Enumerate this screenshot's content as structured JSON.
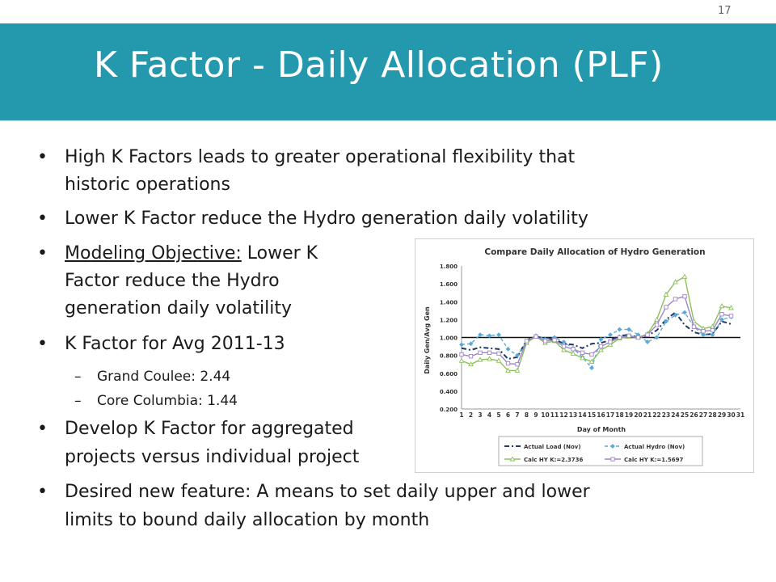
{
  "slide_number": "17",
  "title": "K Factor - Daily Allocation (PLF)",
  "bullets": [
    {
      "line1": "High K Factors leads to greater operational flexibility that",
      "line2": "historic operations"
    },
    {
      "line1": "Lower K Factor reduce the Hydro generation daily volatility"
    },
    {
      "prefix": "Modeling Objective:",
      "line1": " Lower K",
      "line2": "Factor reduce the Hydro",
      "line3": "generation daily volatility"
    },
    {
      "line1": "K Factor for Avg 2011-13"
    },
    {
      "line1": "Develop K Factor for aggregated",
      "line2": "projects versus individual project"
    },
    {
      "line1": "Desired new feature: A means to set daily upper and lower",
      "line2": "limits to bound daily allocation by month"
    }
  ],
  "sub_bullets": [
    "Grand Coulee: 2.44",
    "Core Columbia: 1.44"
  ],
  "chart_data": {
    "type": "line",
    "title": "Compare Daily Allocation of Hydro Generation",
    "xlabel": "Day of Month",
    "ylabel": "Daily Gen/Avg Gen",
    "x": [
      1,
      2,
      3,
      4,
      5,
      6,
      7,
      8,
      9,
      10,
      11,
      12,
      13,
      14,
      15,
      16,
      17,
      18,
      19,
      20,
      21,
      22,
      23,
      24,
      25,
      26,
      27,
      28,
      29,
      30,
      31
    ],
    "xlim": [
      1,
      31
    ],
    "ylim": [
      0.2,
      1.8
    ],
    "yticks": [
      "0.200",
      "0.400",
      "0.600",
      "0.800",
      "1.000",
      "1.200",
      "1.400",
      "1.600",
      "1.800"
    ],
    "reference_line": 1.0,
    "legend_position": "bottom",
    "series": [
      {
        "name": "Actual Load (Nov)",
        "color": "#1f3864",
        "dash": "6,3,2,3",
        "marker": "none",
        "values": [
          0.88,
          0.86,
          0.89,
          0.88,
          0.87,
          0.76,
          0.78,
          0.97,
          1.01,
          0.99,
          0.98,
          0.93,
          0.92,
          0.88,
          0.93,
          0.94,
          0.97,
          1.02,
          1.03,
          1.0,
          1.02,
          1.08,
          1.2,
          1.28,
          1.14,
          1.06,
          1.03,
          1.04,
          1.18,
          1.15,
          null
        ]
      },
      {
        "name": "Actual Hydro (Nov)",
        "color": "#5aa9d9",
        "dash": "4,3",
        "marker": "diamond",
        "values": [
          0.92,
          0.93,
          1.03,
          1.02,
          1.03,
          0.87,
          0.8,
          0.95,
          1.02,
          0.98,
          1.0,
          0.95,
          0.88,
          0.78,
          0.66,
          0.98,
          1.03,
          1.09,
          1.09,
          1.03,
          0.95,
          1.0,
          1.18,
          1.25,
          1.28,
          1.12,
          1.03,
          1.03,
          1.2,
          1.23,
          null
        ]
      },
      {
        "name": "Calc HY K:=2.3736",
        "color": "#8cc05a",
        "dash": "",
        "marker": "triangle",
        "values": [
          0.74,
          0.7,
          0.75,
          0.76,
          0.74,
          0.63,
          0.63,
          0.94,
          1.01,
          0.94,
          0.96,
          0.86,
          0.82,
          0.77,
          0.73,
          0.86,
          0.92,
          0.99,
          1.01,
          1.0,
          1.04,
          1.2,
          1.48,
          1.62,
          1.68,
          1.18,
          1.1,
          1.12,
          1.35,
          1.33,
          null
        ]
      },
      {
        "name": "Calc HY K:=1.5697",
        "color": "#9d86c4",
        "dash": "",
        "marker": "square",
        "values": [
          0.81,
          0.79,
          0.83,
          0.83,
          0.82,
          0.71,
          0.7,
          0.96,
          1.01,
          0.96,
          0.97,
          0.9,
          0.87,
          0.83,
          0.81,
          0.9,
          0.95,
          1.0,
          1.02,
          1.0,
          1.03,
          1.14,
          1.34,
          1.43,
          1.46,
          1.12,
          1.07,
          1.08,
          1.26,
          1.24,
          null
        ]
      }
    ]
  }
}
